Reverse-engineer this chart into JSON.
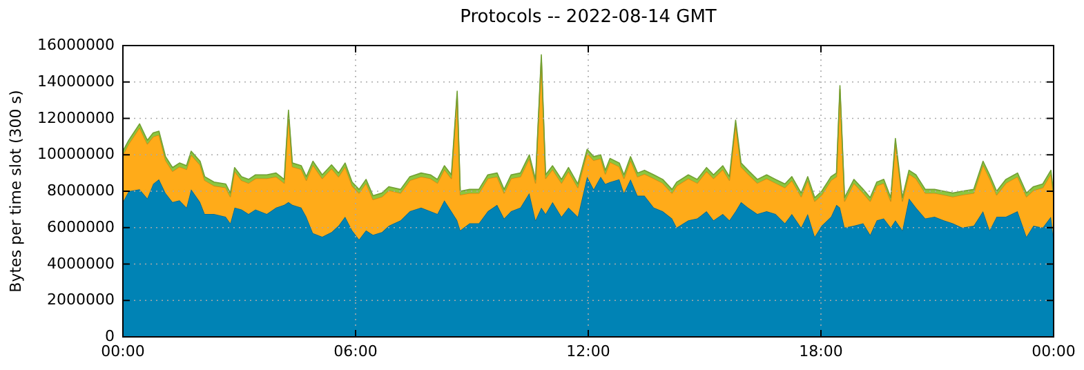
{
  "chart_data": {
    "type": "area",
    "stacked": true,
    "title": "Protocols -- 2022-08-14 GMT",
    "ylabel": "Bytes per time slot (300 s)",
    "x": [
      0,
      0.15,
      0.43,
      0.63,
      0.78,
      0.93,
      1.1,
      1.28,
      1.46,
      1.64,
      1.76,
      1.99,
      2.11,
      2.35,
      2.65,
      2.77,
      2.88,
      3.06,
      3.24,
      3.42,
      3.71,
      3.95,
      4.16,
      4.27,
      4.37,
      4.6,
      4.73,
      4.9,
      5.14,
      5.38,
      5.56,
      5.73,
      5.91,
      6.09,
      6.27,
      6.45,
      6.68,
      6.86,
      7.16,
      7.4,
      7.69,
      7.93,
      8.11,
      8.29,
      8.47,
      8.62,
      8.7,
      8.94,
      9.18,
      9.41,
      9.65,
      9.83,
      10.01,
      10.25,
      10.48,
      10.64,
      10.79,
      10.9,
      11.08,
      11.31,
      11.49,
      11.73,
      11.97,
      12.14,
      12.32,
      12.44,
      12.56,
      12.8,
      12.92,
      13.09,
      13.27,
      13.45,
      13.69,
      13.92,
      14.16,
      14.28,
      14.58,
      14.81,
      15.05,
      15.23,
      15.47,
      15.64,
      15.8,
      15.94,
      16.12,
      16.36,
      16.6,
      16.83,
      17.07,
      17.25,
      17.49,
      17.66,
      17.84,
      18.02,
      18.26,
      18.4,
      18.49,
      18.61,
      18.85,
      19.09,
      19.27,
      19.44,
      19.62,
      19.8,
      19.92,
      20.1,
      20.27,
      20.45,
      20.69,
      20.93,
      21.17,
      21.4,
      21.64,
      21.94,
      22.18,
      22.35,
      22.53,
      22.77,
      23.07,
      23.3,
      23.48,
      23.72,
      23.93,
      24
    ],
    "series": [
      {
        "color": "#0083b5",
        "values": [
          7400000.0,
          8000000.0,
          8100000.0,
          7600000.0,
          8400000.0,
          8650000.0,
          7900000.0,
          7400000.0,
          7500000.0,
          7100000.0,
          8100000.0,
          7400000.0,
          6750000.0,
          6750000.0,
          6600000.0,
          6240000.0,
          7100000.0,
          7000000.0,
          6750000.0,
          7000000.0,
          6750000.0,
          7100000.0,
          7250000.0,
          7400000.0,
          7250000.0,
          7100000.0,
          6600000.0,
          5700000.0,
          5500000.0,
          5750000.0,
          6100000.0,
          6600000.0,
          5850000.0,
          5350000.0,
          5850000.0,
          5600000.0,
          5750000.0,
          6100000.0,
          6400000.0,
          6900000.0,
          7100000.0,
          6900000.0,
          6750000.0,
          7500000.0,
          6900000.0,
          6400000.0,
          5850000.0,
          6240000.0,
          6240000.0,
          6900000.0,
          7250000.0,
          6500000.0,
          6900000.0,
          7100000.0,
          7900000.0,
          6400000.0,
          7100000.0,
          6750000.0,
          7400000.0,
          6600000.0,
          7100000.0,
          6600000.0,
          8800000.0,
          8100000.0,
          8800000.0,
          8400000.0,
          8500000.0,
          8650000.0,
          7900000.0,
          8650000.0,
          7750000.0,
          7750000.0,
          7100000.0,
          6900000.0,
          6500000.0,
          6000000.0,
          6400000.0,
          6500000.0,
          6900000.0,
          6400000.0,
          6750000.0,
          6400000.0,
          6900000.0,
          7400000.0,
          7100000.0,
          6750000.0,
          6900000.0,
          6750000.0,
          6240000.0,
          6750000.0,
          6000000.0,
          6750000.0,
          5500000.0,
          6100000.0,
          6600000.0,
          7250000.0,
          7100000.0,
          6000000.0,
          6100000.0,
          6240000.0,
          5600000.0,
          6400000.0,
          6500000.0,
          6000000.0,
          6400000.0,
          5850000.0,
          7600000.0,
          7100000.0,
          6500000.0,
          6600000.0,
          6400000.0,
          6240000.0,
          6000000.0,
          6100000.0,
          6900000.0,
          5850000.0,
          6600000.0,
          6600000.0,
          6900000.0,
          5500000.0,
          6100000.0,
          6000000.0,
          6600000.0,
          5350000.0
        ]
      },
      {
        "color": "#ffab19",
        "values": [
          2600000.0,
          2600000.0,
          3400000.0,
          3000000.0,
          2600000.0,
          2450000.0,
          1800000.0,
          1700000.0,
          1850000.0,
          2100000.0,
          1900000.0,
          2050000.0,
          1850000.0,
          1550000.0,
          1600000.0,
          1460000.0,
          2000000.0,
          1600000.0,
          1700000.0,
          1700000.0,
          1950000.0,
          1700000.0,
          1200000.0,
          4850000.0,
          2100000.0,
          2100000.0,
          2000000.0,
          3750000.0,
          3200000.0,
          3500000.0,
          2700000.0,
          2750000.0,
          2450000.0,
          2550000.0,
          2600000.0,
          1950000.0,
          1950000.0,
          1950000.0,
          1500000.0,
          1700000.0,
          1700000.0,
          1800000.0,
          1700000.0,
          1700000.0,
          1800000.0,
          6900000.0,
          1950000.0,
          1660000.0,
          1660000.0,
          1800000.0,
          1550000.0,
          1400000.0,
          1800000.0,
          1700000.0,
          1900000.0,
          2050000.0,
          8200000.0,
          1950000.0,
          1800000.0,
          1850000.0,
          2000000.0,
          1600000.0,
          1300000.0,
          1600000.0,
          1000000.0,
          550000.0,
          1100000.0,
          700000.0,
          800000.0,
          1050000.0,
          1050000.0,
          1200000.0,
          1600000.0,
          1550000.0,
          1400000.0,
          2300000.0,
          2300000.0,
          1950000.0,
          2200000.0,
          2300000.0,
          2450000.0,
          2200000.0,
          4800000.0,
          1950000.0,
          1850000.0,
          1700000.0,
          1800000.0,
          1700000.0,
          1960000.0,
          1850000.0,
          1700000.0,
          1850000.0,
          1950000.0,
          1700000.0,
          2000000.0,
          1550000.0,
          6500000.0,
          1450000.0,
          2350000.0,
          1660000.0,
          1850000.0,
          1900000.0,
          1950000.0,
          1450000.0,
          4300000.0,
          1600000.0,
          1350000.0,
          1600000.0,
          1400000.0,
          1300000.0,
          1400000.0,
          1460000.0,
          1800000.0,
          1800000.0,
          2550000.0,
          2850000.0,
          1200000.0,
          1850000.0,
          1900000.0,
          2200000.0,
          1950000.0,
          2200000.0,
          2350000.0,
          2350000.0
        ]
      },
      {
        "color": "#8cc63f",
        "values": [
          200000.0,
          200000.0,
          200000.0,
          200000.0,
          200000.0,
          200000.0,
          200000.0,
          200000.0,
          200000.0,
          200000.0,
          200000.0,
          200000.0,
          200000.0,
          200000.0,
          200000.0,
          200000.0,
          200000.0,
          200000.0,
          200000.0,
          200000.0,
          200000.0,
          200000.0,
          200000.0,
          200000.0,
          200000.0,
          200000.0,
          200000.0,
          200000.0,
          200000.0,
          200000.0,
          200000.0,
          200000.0,
          200000.0,
          200000.0,
          200000.0,
          200000.0,
          200000.0,
          200000.0,
          200000.0,
          200000.0,
          200000.0,
          200000.0,
          200000.0,
          200000.0,
          200000.0,
          200000.0,
          200000.0,
          200000.0,
          200000.0,
          200000.0,
          200000.0,
          200000.0,
          200000.0,
          200000.0,
          200000.0,
          200000.0,
          200000.0,
          200000.0,
          200000.0,
          200000.0,
          200000.0,
          200000.0,
          200000.0,
          200000.0,
          200000.0,
          200000.0,
          200000.0,
          200000.0,
          200000.0,
          200000.0,
          200000.0,
          200000.0,
          200000.0,
          200000.0,
          200000.0,
          200000.0,
          200000.0,
          200000.0,
          200000.0,
          200000.0,
          200000.0,
          200000.0,
          200000.0,
          200000.0,
          200000.0,
          200000.0,
          200000.0,
          200000.0,
          200000.0,
          200000.0,
          200000.0,
          200000.0,
          200000.0,
          200000.0,
          200000.0,
          200000.0,
          200000.0,
          200000.0,
          200000.0,
          200000.0,
          200000.0,
          200000.0,
          200000.0,
          200000.0,
          200000.0,
          200000.0,
          200000.0,
          200000.0,
          200000.0,
          200000.0,
          200000.0,
          200000.0,
          200000.0,
          200000.0,
          200000.0,
          200000.0,
          200000.0,
          200000.0,
          200000.0,
          200000.0,
          200000.0,
          200000.0,
          200000.0,
          200000.0
        ]
      }
    ],
    "xlim": [
      0,
      24
    ],
    "xticks": [
      {
        "value": 0,
        "label": "00:00"
      },
      {
        "value": 6,
        "label": "06:00"
      },
      {
        "value": 12,
        "label": "12:00"
      },
      {
        "value": 18,
        "label": "18:00"
      },
      {
        "value": 24,
        "label": "00:00"
      }
    ],
    "ylim": [
      0,
      16000000
    ],
    "yticks": [
      0,
      2000000,
      4000000,
      6000000,
      8000000,
      10000000,
      12000000,
      14000000,
      16000000
    ],
    "grid": true
  }
}
